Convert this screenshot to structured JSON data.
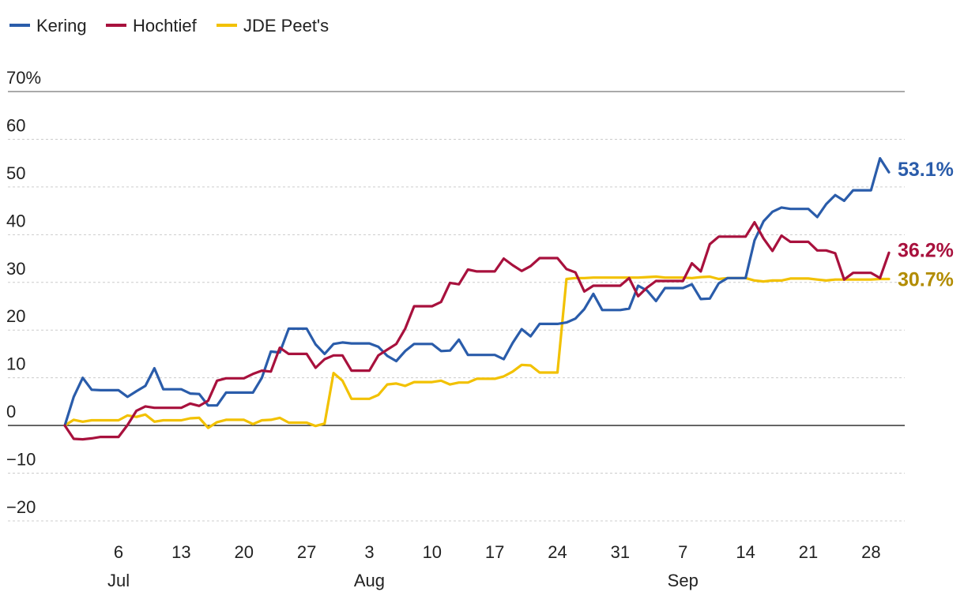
{
  "chart_data": {
    "type": "line",
    "title": "",
    "xlabel": "",
    "ylabel": "",
    "ylim": [
      -20,
      70
    ],
    "y_ticks": [
      -20,
      -10,
      0,
      10,
      20,
      30,
      40,
      50,
      60,
      70
    ],
    "y_tick_labels": [
      "−20",
      "−10",
      "0",
      "10",
      "20",
      "30",
      "40",
      "50",
      "60",
      "70%"
    ],
    "x_ticks": [
      {
        "day": 4,
        "label": "6",
        "month": "Jul"
      },
      {
        "day": 11,
        "label": "13",
        "month": ""
      },
      {
        "day": 18,
        "label": "20",
        "month": ""
      },
      {
        "day": 25,
        "label": "27",
        "month": ""
      },
      {
        "day": 32,
        "label": "3",
        "month": "Aug"
      },
      {
        "day": 39,
        "label": "10",
        "month": ""
      },
      {
        "day": 46,
        "label": "17",
        "month": ""
      },
      {
        "day": 53,
        "label": "24",
        "month": ""
      },
      {
        "day": 60,
        "label": "31",
        "month": ""
      },
      {
        "day": 67,
        "label": "7",
        "month": "Sep"
      },
      {
        "day": 74,
        "label": "14",
        "month": ""
      },
      {
        "day": 81,
        "label": "21",
        "month": ""
      },
      {
        "day": 88,
        "label": "28",
        "month": ""
      }
    ],
    "x_range_days": [
      -4,
      93
    ],
    "grid": true,
    "legend_position": "top-left",
    "series": [
      {
        "name": "Kering",
        "color": "#2a5caa",
        "end_label": "53.1%",
        "end_label_color": "#2a5caa",
        "days": [
          -2,
          -1,
          0,
          1,
          2,
          3,
          4,
          5,
          6,
          7,
          8,
          9,
          10,
          11,
          12,
          13,
          14,
          15,
          16,
          17,
          18,
          19,
          20,
          21,
          22,
          23,
          24,
          25,
          26,
          27,
          28,
          29,
          30,
          31,
          32,
          33,
          34,
          35,
          36,
          37,
          38,
          39,
          40,
          41,
          42,
          43,
          44,
          45,
          46,
          47,
          48,
          49,
          50,
          51,
          52,
          53,
          54,
          55,
          56,
          57,
          58,
          59,
          60,
          61,
          62,
          63,
          64,
          65,
          66,
          67,
          68,
          69,
          70,
          71,
          72,
          73,
          74,
          75,
          76,
          77,
          78,
          79,
          80,
          81,
          82,
          83,
          84,
          85,
          86,
          87,
          88,
          89,
          90
        ],
        "values": [
          0,
          6,
          10,
          7.5,
          7.4,
          7.4,
          7.4,
          6,
          7.2,
          8.3,
          12,
          7.6,
          7.6,
          7.6,
          6.7,
          6.6,
          4.2,
          4.2,
          6.9,
          6.9,
          6.9,
          6.9,
          10,
          15.5,
          15.3,
          20.3,
          20.3,
          20.3,
          17,
          15,
          17.1,
          17.4,
          17.2,
          17.2,
          17.2,
          16.5,
          14.6,
          13.5,
          15.6,
          17.1,
          17.1,
          17.1,
          15.6,
          15.7,
          18,
          14.8,
          14.8,
          14.8,
          14.8,
          13.9,
          17.3,
          20.2,
          18.7,
          21.3,
          21.3,
          21.3,
          21.6,
          22.4,
          24.4,
          27.6,
          24.2,
          24.2,
          24.2,
          24.5,
          29.3,
          28.3,
          26.1,
          28.8,
          28.8,
          28.8,
          29.6,
          26.5,
          26.6,
          29.8,
          30.9,
          30.9,
          30.9,
          38.8,
          42.8,
          44.8,
          45.7,
          45.4,
          45.4,
          45.4,
          43.7,
          46.4,
          48.3,
          47.1,
          49.3,
          49.3,
          49.3,
          56,
          53.1
        ]
      },
      {
        "name": "Hochtief",
        "color": "#a8113d",
        "end_label": "36.2%",
        "end_label_color": "#a8113d",
        "days": [
          -2,
          -1,
          0,
          1,
          2,
          3,
          4,
          5,
          6,
          7,
          8,
          9,
          10,
          11,
          12,
          13,
          14,
          15,
          16,
          17,
          18,
          19,
          20,
          21,
          22,
          23,
          24,
          25,
          26,
          27,
          28,
          29,
          30,
          31,
          32,
          33,
          34,
          35,
          36,
          37,
          38,
          39,
          40,
          41,
          42,
          43,
          44,
          45,
          46,
          47,
          48,
          49,
          50,
          51,
          52,
          53,
          54,
          55,
          56,
          57,
          58,
          59,
          60,
          61,
          62,
          63,
          64,
          65,
          66,
          67,
          68,
          69,
          70,
          71,
          72,
          73,
          74,
          75,
          76,
          77,
          78,
          79,
          80,
          81,
          82,
          83,
          84,
          85,
          86,
          87,
          88,
          89,
          90
        ],
        "values": [
          0,
          -2.8,
          -2.9,
          -2.7,
          -2.4,
          -2.4,
          -2.4,
          0.1,
          3.1,
          4,
          3.7,
          3.7,
          3.7,
          3.7,
          4.6,
          4.1,
          5.2,
          9.4,
          9.9,
          9.9,
          9.9,
          10.8,
          11.5,
          11.3,
          16.3,
          15,
          15,
          15,
          12.1,
          13.9,
          14.7,
          14.7,
          11.5,
          11.5,
          11.5,
          14.7,
          15.9,
          17.1,
          20.3,
          25,
          25,
          25,
          25.9,
          29.9,
          29.6,
          32.7,
          32.3,
          32.3,
          32.3,
          35,
          33.6,
          32.4,
          33.4,
          35.1,
          35.1,
          35.1,
          32.8,
          32.1,
          28.1,
          29.3,
          29.3,
          29.3,
          29.3,
          30.9,
          27.1,
          28.9,
          30.3,
          30.3,
          30.3,
          30.3,
          34,
          32.3,
          38,
          39.6,
          39.6,
          39.6,
          39.6,
          42.6,
          39.2,
          36.6,
          39.8,
          38.5,
          38.5,
          38.5,
          36.7,
          36.7,
          36.1,
          30.6,
          32,
          32,
          32,
          30.9,
          36.2
        ]
      },
      {
        "name": "JDE Peet's",
        "color": "#f2c100",
        "end_label": "30.7%",
        "end_label_color": "#b28c00",
        "days": [
          -2,
          -1,
          0,
          1,
          2,
          3,
          4,
          5,
          6,
          7,
          8,
          9,
          10,
          11,
          12,
          13,
          14,
          15,
          16,
          17,
          18,
          19,
          20,
          21,
          22,
          23,
          24,
          25,
          26,
          27,
          28,
          29,
          30,
          31,
          32,
          33,
          34,
          35,
          36,
          37,
          38,
          39,
          40,
          41,
          42,
          43,
          44,
          45,
          46,
          47,
          48,
          49,
          50,
          51,
          52,
          53,
          54,
          55,
          56,
          57,
          58,
          59,
          60,
          61,
          62,
          63,
          64,
          65,
          66,
          67,
          68,
          69,
          70,
          71,
          72,
          73,
          74,
          75,
          76,
          77,
          78,
          79,
          80,
          81,
          82,
          83,
          84,
          85,
          86,
          87,
          88,
          89,
          90
        ],
        "values": [
          0,
          1.2,
          0.8,
          1.1,
          1.1,
          1.1,
          1.1,
          2.1,
          1.8,
          2.3,
          0.8,
          1.1,
          1.1,
          1.1,
          1.5,
          1.6,
          -0.5,
          0.7,
          1.2,
          1.2,
          1.2,
          0.3,
          1.1,
          1.2,
          1.6,
          0.6,
          0.6,
          0.6,
          -0.1,
          0.4,
          11,
          9.4,
          5.6,
          5.6,
          5.6,
          6.4,
          8.6,
          8.8,
          8.3,
          9.1,
          9.1,
          9.1,
          9.4,
          8.6,
          9,
          9,
          9.8,
          9.8,
          9.8,
          10.3,
          11.3,
          12.7,
          12.6,
          11.1,
          11.1,
          11.1,
          30.7,
          30.9,
          30.9,
          31,
          31,
          31,
          31,
          31,
          31,
          31.1,
          31.2,
          31,
          31,
          31,
          30.9,
          31.1,
          31.2,
          30.7,
          30.9,
          30.9,
          30.9,
          30.4,
          30.2,
          30.4,
          30.4,
          30.8,
          30.8,
          30.8,
          30.6,
          30.4,
          30.6,
          30.6,
          30.6,
          30.6,
          30.6,
          30.7,
          30.7
        ]
      }
    ]
  }
}
